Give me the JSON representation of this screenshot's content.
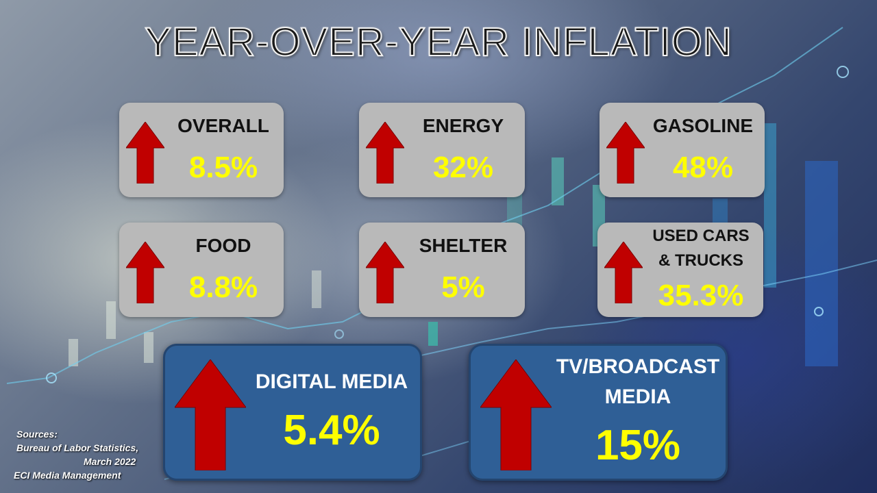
{
  "title": "YEAR-OVER-YEAR INFLATION",
  "colors": {
    "card_gray": "#b9b9b9",
    "card_blue": "#2f5f96",
    "value_yellow": "#ffff00",
    "arrow_red": "#c00000"
  },
  "categories": [
    {
      "label": "OVERALL",
      "value": "8.5%",
      "direction": "up"
    },
    {
      "label": "ENERGY",
      "value": "32%",
      "direction": "up"
    },
    {
      "label": "GASOLINE",
      "value": "48%",
      "direction": "up"
    },
    {
      "label": "FOOD",
      "value": "8.8%",
      "direction": "up"
    },
    {
      "label": "SHELTER",
      "value": "5%",
      "direction": "up"
    },
    {
      "label_line1": "USED CARS",
      "label_line2": "& TRUCKS",
      "value": "35.3%",
      "direction": "up"
    }
  ],
  "media": [
    {
      "label": "DIGITAL MEDIA",
      "value": "5.4%",
      "direction": "up"
    },
    {
      "label_line1": "TV/BROADCAST",
      "label_line2": "MEDIA",
      "value": "15%",
      "direction": "up"
    }
  ],
  "sources": {
    "heading": "Sources:",
    "line1": "Bureau of Labor Statistics,",
    "line2": "March 2022",
    "line3": "ECI Media Management"
  },
  "icons": [
    "arrow-up-icon"
  ]
}
